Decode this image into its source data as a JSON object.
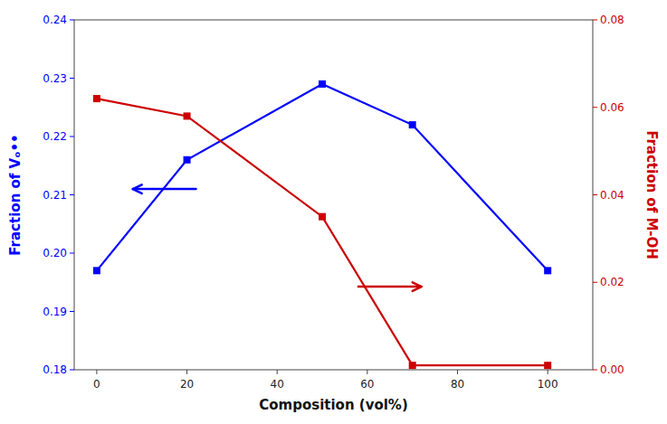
{
  "chart_data": {
    "type": "line",
    "xlabel": "Composition (vol%)",
    "ylabel": "Fraction of Vₒ••",
    "y2label": "Fraction of M-OH",
    "x": [
      0,
      20,
      50,
      70,
      100
    ],
    "series": [
      {
        "color": "#0000FF",
        "marker": "square",
        "axis": "y",
        "values": [
          0.197,
          0.216,
          0.229,
          0.222,
          0.197
        ]
      },
      {
        "color": "#CC0000",
        "marker": "square",
        "axis": "y2",
        "values": [
          0.062,
          0.058,
          0.035,
          0.001,
          0.001
        ]
      }
    ],
    "xlim": [
      -5,
      110
    ],
    "xticks": [
      0,
      20,
      40,
      60,
      80,
      100
    ],
    "ylim": [
      0.18,
      0.24
    ],
    "yticks": [
      0.18,
      0.19,
      {
        "value": 0.2,
        "label": "0.20"
      },
      0.21,
      0.22,
      0.23,
      0.24
    ],
    "y2lim": [
      0.0,
      0.08
    ],
    "y2ticks": [
      {
        "value": 0,
        "label": "0.00"
      },
      0.02,
      0.04,
      0.06,
      0.08
    ],
    "arrows": [
      {
        "axis": "y",
        "color": "#0000FF",
        "x": [
          22,
          8
        ],
        "y": [
          0.211,
          0.211
        ]
      },
      {
        "axis": "y2",
        "color": "#CC0000",
        "x": [
          58,
          72
        ],
        "y": [
          0.019,
          0.019
        ]
      }
    ],
    "grid": false
  }
}
